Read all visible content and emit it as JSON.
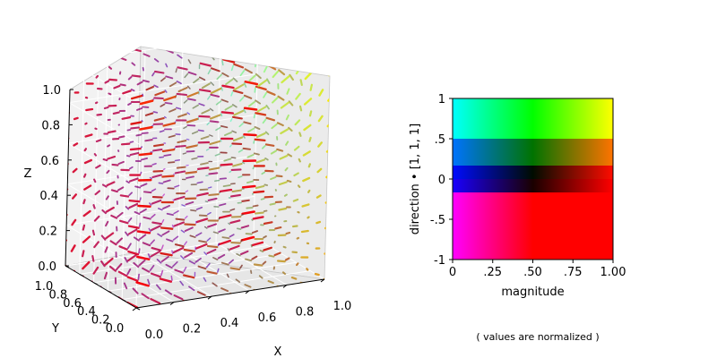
{
  "chart_data": [
    {
      "type": "quiver3d",
      "x_label": "X",
      "y_label": "Y",
      "z_label": "Z",
      "x_range": [
        0.0,
        1.0
      ],
      "y_range": [
        0.0,
        1.0
      ],
      "z_range": [
        0.0,
        1.0
      ],
      "x_ticks": [
        "0.0",
        "0.2",
        "0.4",
        "0.6",
        "0.8",
        "1.0"
      ],
      "y_ticks": [
        "0.0",
        "0.2",
        "0.4",
        "0.6",
        "0.8",
        "1.0"
      ],
      "z_ticks": [
        "0.0",
        "0.2",
        "0.4",
        "0.6",
        "0.8",
        "1.0"
      ],
      "grid": true,
      "grid_divisions": 11
    },
    {
      "type": "heatmap",
      "xlabel": "magnitude",
      "ylabel": "direction • [1, 1, 1]",
      "x_range": [
        0,
        1
      ],
      "y_range": [
        -1,
        1
      ],
      "x_ticks": [
        "0",
        ".25",
        ".50",
        ".75",
        "1.00"
      ],
      "y_ticks": [
        "-1",
        "-.5",
        "0",
        ".5",
        "1"
      ],
      "corner_colors": {
        "top_left": "#00ffff",
        "top_center": "#00ff00",
        "top_right": "#ffff00",
        "center_left": "#0000ff",
        "center": "#000000",
        "center_right": "#ff0000",
        "bottom_left": "#ff00ff",
        "bottom_right": "#ff0000"
      }
    }
  ],
  "note": "( values are normalized )"
}
